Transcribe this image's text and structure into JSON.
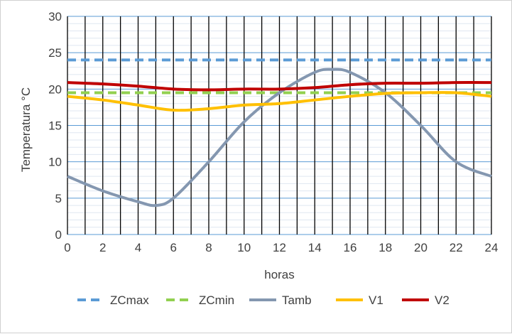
{
  "chart_data": {
    "type": "line",
    "title": "",
    "xlabel": "horas",
    "ylabel": "Temperatura °C",
    "xlim": [
      0,
      24
    ],
    "ylim": [
      0,
      30
    ],
    "x_ticks": [
      "0",
      "2",
      "4",
      "6",
      "8",
      "10",
      "12",
      "14",
      "16",
      "18",
      "20",
      "22",
      "24"
    ],
    "y_ticks": [
      "0",
      "5",
      "10",
      "15",
      "20",
      "25",
      "30"
    ],
    "grid": true,
    "legend_position": "bottom",
    "series": [
      {
        "name": "ZCmax",
        "color": "#5B9BD5",
        "style": "dashed",
        "x": [
          0,
          24
        ],
        "y": [
          24,
          24
        ]
      },
      {
        "name": "ZCmin",
        "color": "#92D050",
        "style": "dashed",
        "x": [
          0,
          24
        ],
        "y": [
          19.5,
          19.5
        ]
      },
      {
        "name": "Tamb",
        "color": "#8497B0",
        "style": "solid",
        "x": [
          0,
          2,
          4,
          5,
          6,
          8,
          10,
          12,
          14,
          15,
          16,
          18,
          20,
          22,
          24
        ],
        "y": [
          8,
          6,
          4.5,
          4,
          5,
          10,
          15.5,
          19.5,
          22.3,
          22.7,
          22.3,
          19.5,
          15,
          10,
          8
        ]
      },
      {
        "name": "V1",
        "color": "#FFC000",
        "style": "solid",
        "x": [
          0,
          2,
          4,
          6,
          8,
          10,
          12,
          14,
          16,
          18,
          20,
          22,
          24
        ],
        "y": [
          19,
          18.5,
          17.8,
          17.1,
          17.3,
          17.8,
          18,
          18.5,
          19,
          19.4,
          19.5,
          19.5,
          19
        ]
      },
      {
        "name": "V2",
        "color": "#C00000",
        "style": "solid",
        "x": [
          0,
          2,
          4,
          6,
          8,
          10,
          12,
          14,
          16,
          18,
          20,
          22,
          24
        ],
        "y": [
          20.9,
          20.7,
          20.4,
          20,
          19.9,
          20,
          20,
          20.2,
          20.6,
          20.8,
          20.8,
          20.9,
          20.9
        ]
      }
    ]
  }
}
